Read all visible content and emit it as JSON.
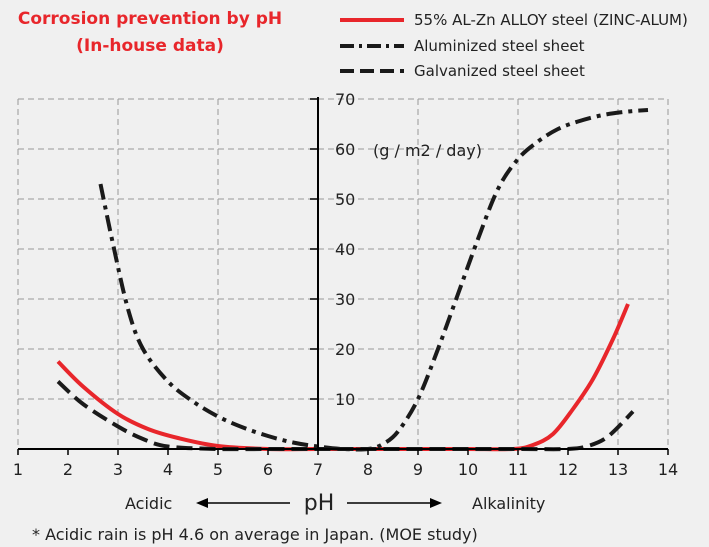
{
  "chart_data": {
    "type": "line",
    "title": "Corrosion prevention by pH",
    "subtitle": "(In-house data)",
    "xlabel": "pH",
    "ylabel": "",
    "unit_label": "(g / m2 / day)",
    "xlim": [
      1,
      14
    ],
    "ylim": [
      0,
      70
    ],
    "x_ticks": [
      1,
      2,
      3,
      4,
      5,
      6,
      7,
      8,
      9,
      10,
      11,
      12,
      13,
      14
    ],
    "y_ticks": [
      10,
      20,
      30,
      40,
      50,
      60,
      70
    ],
    "grid": true,
    "legend_position": "top-right",
    "direction_left": "Acidic",
    "direction_right": "Alkalinity",
    "series": [
      {
        "name": "55% AL-Zn ALLOY steel (ZINC-ALUM)",
        "style": "solid",
        "color": "#e8262b",
        "x": [
          1.8,
          2.3,
          3,
          3.6,
          4.2,
          5,
          6,
          7,
          8,
          9,
          10,
          10.9,
          11.3,
          11.7,
          12.1,
          12.5,
          12.9,
          13.2
        ],
        "y": [
          17.5,
          12.5,
          7,
          4,
          2.2,
          0.6,
          0,
          0,
          0,
          0,
          0,
          0,
          0.8,
          3,
          8,
          14,
          22,
          29
        ]
      },
      {
        "name": "Aluminized  steel sheet",
        "style": "dash-dot",
        "color": "#1a1a1a",
        "x": [
          2.65,
          2.9,
          3.2,
          3.5,
          4,
          4.5,
          5,
          5.5,
          6,
          6.5,
          7,
          7.5,
          8,
          8.3,
          8.6,
          9,
          9.4,
          9.8,
          10.2,
          10.6,
          11,
          11.4,
          11.8,
          12.2,
          12.7,
          13.2,
          13.6
        ],
        "y": [
          53,
          41,
          28,
          20,
          13.5,
          9.5,
          6.5,
          4.3,
          2.6,
          1.3,
          0.5,
          0,
          0,
          1,
          3.5,
          10,
          20,
          31,
          42,
          52,
          58,
          61.5,
          64,
          65.5,
          66.8,
          67.5,
          67.8
        ]
      },
      {
        "name": "Galvanized steel sheet",
        "style": "dashed",
        "color": "#1a1a1a",
        "x": [
          1.8,
          2.3,
          3,
          3.5,
          4,
          5,
          6,
          7,
          8,
          9,
          10,
          11,
          12,
          12.4,
          12.8,
          13.3
        ],
        "y": [
          13.5,
          9,
          4.5,
          2,
          0.5,
          0,
          0,
          0,
          0,
          0,
          0,
          0,
          0,
          0.6,
          2.5,
          7.5
        ]
      }
    ]
  },
  "footnote": "* Acidic rain is pH 4.6 on average in Japan. (MOE study)",
  "colors": {
    "background": "#f0f0f0",
    "grid": "#999999",
    "axis": "#000000",
    "accent": "#e8262b"
  }
}
